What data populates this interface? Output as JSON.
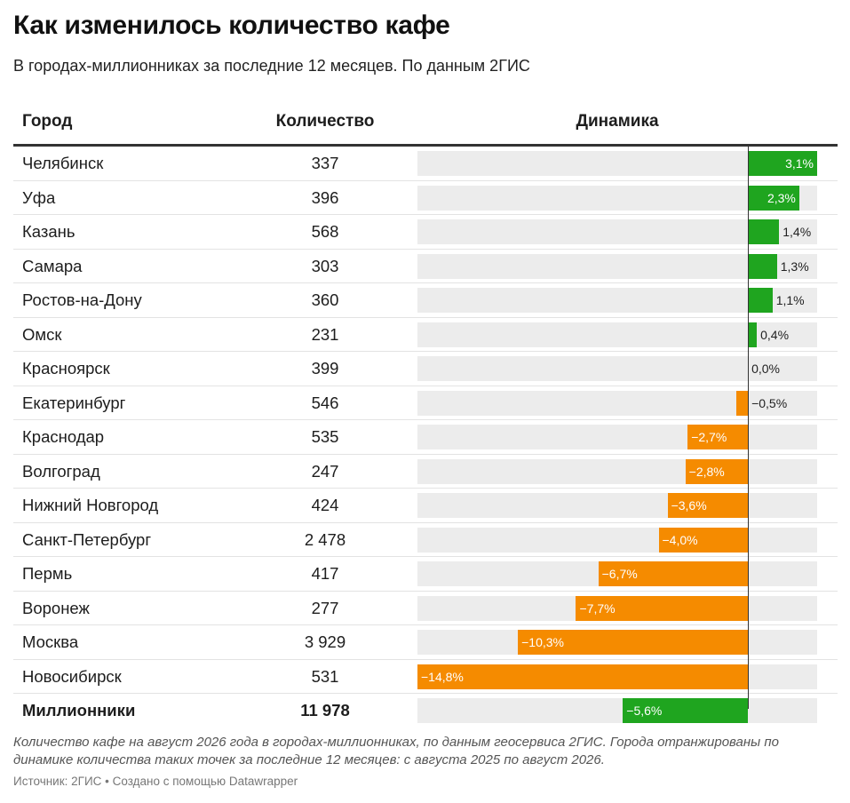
{
  "title": "Как изменилось количество кафе",
  "subtitle": "В городах-миллионниках за последние 12 месяцев. По данным 2ГИС",
  "columns": {
    "city": "Город",
    "count": "Количество",
    "dynamics": "Динамика"
  },
  "colors": {
    "positive": "#1fa51f",
    "negative": "#f58b00",
    "track": "#ececec"
  },
  "chart_data": {
    "type": "bar",
    "unit": "%",
    "xlim": [
      -14.8,
      3.1
    ],
    "rows": [
      {
        "city": "Челябинск",
        "count": "337",
        "value": 3.1,
        "label": "3,1%"
      },
      {
        "city": "Уфа",
        "count": "396",
        "value": 2.3,
        "label": "2,3%"
      },
      {
        "city": "Казань",
        "count": "568",
        "value": 1.4,
        "label": "1,4%"
      },
      {
        "city": "Самара",
        "count": "303",
        "value": 1.3,
        "label": "1,3%"
      },
      {
        "city": "Ростов-на-Дону",
        "count": "360",
        "value": 1.1,
        "label": "1,1%"
      },
      {
        "city": "Омск",
        "count": "231",
        "value": 0.4,
        "label": "0,4%"
      },
      {
        "city": "Красноярск",
        "count": "399",
        "value": 0.0,
        "label": "0,0%"
      },
      {
        "city": "Екатеринбург",
        "count": "546",
        "value": -0.5,
        "label": "−0,5%"
      },
      {
        "city": "Краснодар",
        "count": "535",
        "value": -2.7,
        "label": "−2,7%"
      },
      {
        "city": "Волгоград",
        "count": "247",
        "value": -2.8,
        "label": "−2,8%"
      },
      {
        "city": "Нижний Новгород",
        "count": "424",
        "value": -3.6,
        "label": "−3,6%"
      },
      {
        "city": "Санкт-Петербург",
        "count": "2 478",
        "value": -4.0,
        "label": "−4,0%"
      },
      {
        "city": "Пермь",
        "count": "417",
        "value": -6.7,
        "label": "−6,7%"
      },
      {
        "city": "Воронеж",
        "count": "277",
        "value": -7.7,
        "label": "−7,7%"
      },
      {
        "city": "Москва",
        "count": "3 929",
        "value": -10.3,
        "label": "−10,3%"
      },
      {
        "city": "Новосибирск",
        "count": "531",
        "value": -14.8,
        "label": "−14,8%"
      },
      {
        "city": "Миллионники",
        "count": "11 978",
        "value": -5.6,
        "label": "−5,6%",
        "total": true,
        "color": "#1fa51f"
      }
    ]
  },
  "notes": "Количество кафе на август 2026 года в городах-миллионниках, по данным геосервиса 2ГИС. Города отранжированы по динамике количества таких точек за последние 12 месяцев: с августа 2025 по август 2026.",
  "source": "Источник: 2ГИС • Создано с помощью Datawrapper"
}
